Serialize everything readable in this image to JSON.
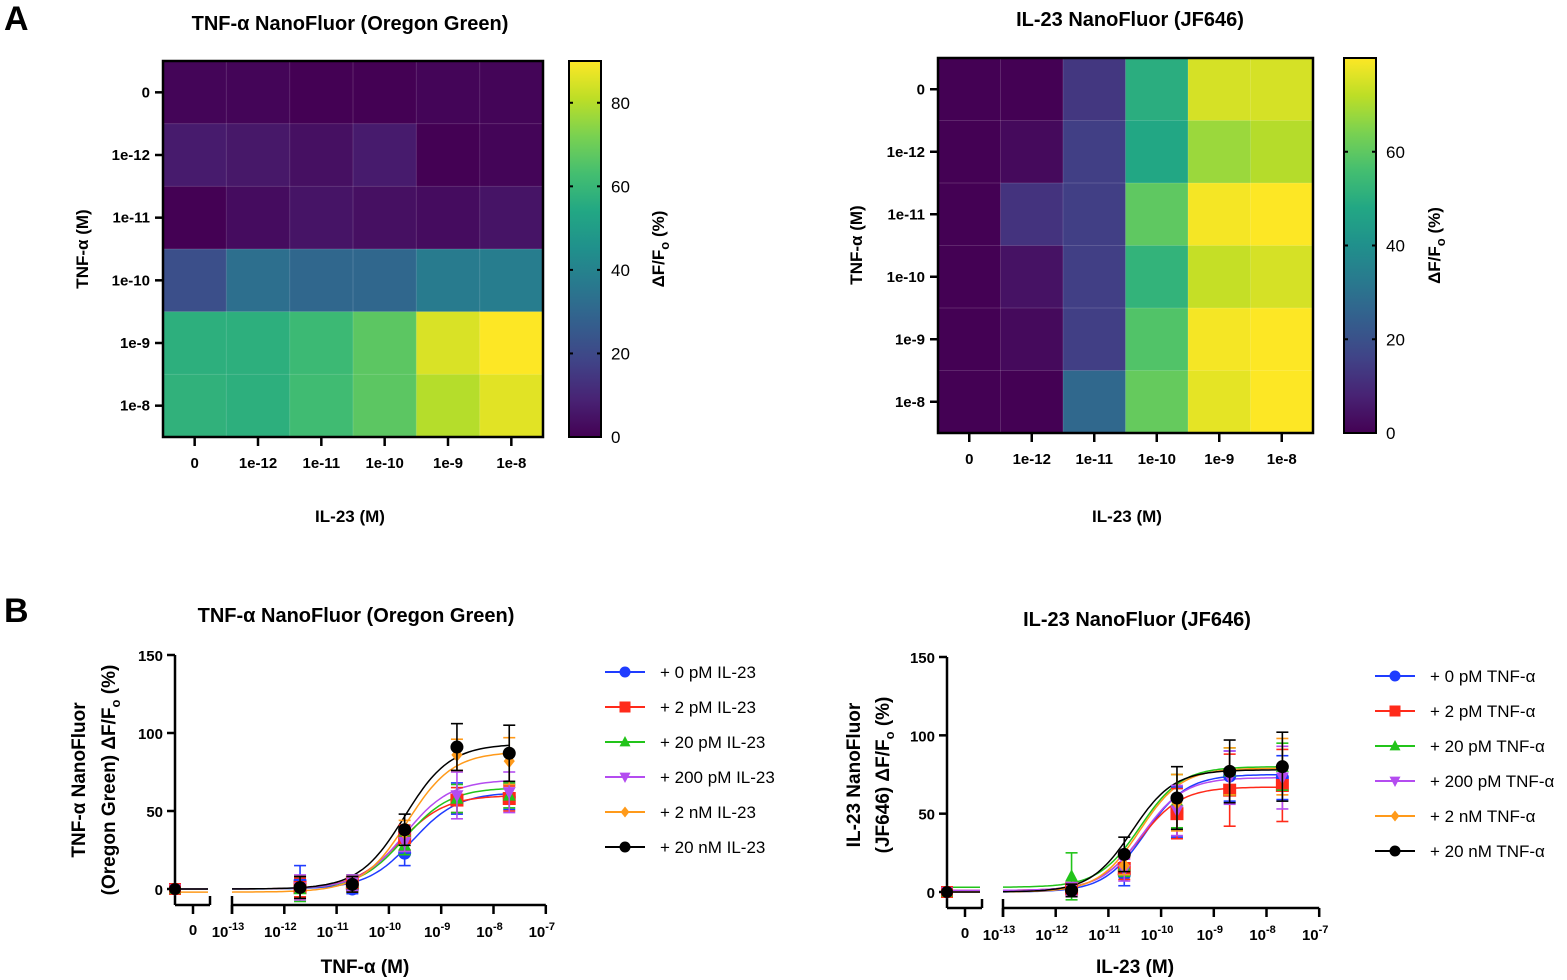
{
  "panels": {
    "a_label": "A",
    "b_label": "B"
  },
  "chart_data": [
    {
      "type": "heatmap",
      "id": "heatmap-tnf",
      "title": "TNF-α NanoFluor (Oregon Green)",
      "xlabel": "IL-23 (M)",
      "ylabel": "TNF-α (M)",
      "x_categories": [
        "0",
        "1e-12",
        "1e-11",
        "1e-10",
        "1e-9",
        "1e-8"
      ],
      "y_categories": [
        "0",
        "1e-12",
        "1e-11",
        "1e-10",
        "1e-9",
        "1e-8"
      ],
      "values": [
        [
          1,
          1,
          0,
          0,
          1,
          1
        ],
        [
          7,
          6,
          4,
          7,
          0,
          1
        ],
        [
          0,
          3,
          5,
          4,
          3,
          5
        ],
        [
          22,
          33,
          30,
          30,
          37,
          38
        ],
        [
          57,
          57,
          61,
          67,
          85,
          90
        ],
        [
          58,
          57,
          62,
          67,
          80,
          86
        ]
      ],
      "colorbar": {
        "label": "ΔF/F",
        "label_sub": "o",
        "label_suffix": " (%)",
        "range": [
          0,
          90
        ],
        "ticks": [
          0,
          20,
          40,
          60,
          80
        ],
        "colormap": "viridis"
      }
    },
    {
      "type": "heatmap",
      "id": "heatmap-il23",
      "title": "IL-23 NanoFluor (JF646)",
      "xlabel": "IL-23 (M)",
      "ylabel": "TNF-α (M)",
      "x_categories": [
        "0",
        "1e-12",
        "1e-11",
        "1e-10",
        "1e-9",
        "1e-8"
      ],
      "y_categories": [
        "0",
        "1e-12",
        "1e-11",
        "1e-10",
        "1e-9",
        "1e-8"
      ],
      "values": [
        [
          0,
          0,
          13,
          50,
          75,
          75
        ],
        [
          0,
          2,
          15,
          48,
          68,
          71
        ],
        [
          0,
          12,
          15,
          60,
          79,
          80
        ],
        [
          0,
          4,
          15,
          52,
          73,
          75
        ],
        [
          0,
          2,
          15,
          58,
          79,
          80
        ],
        [
          0,
          0,
          27,
          61,
          77,
          80
        ]
      ],
      "colorbar": {
        "label": "ΔF/F",
        "label_sub": "o",
        "label_suffix": " (%)",
        "range": [
          0,
          80
        ],
        "ticks": [
          0,
          20,
          40,
          60
        ],
        "colormap": "viridis"
      }
    },
    {
      "type": "scatter",
      "id": "dose-tnf",
      "title": "TNF-α NanoFluor (Oregon Green)",
      "xlabel": "TNF-α (M)",
      "ylabel_line1": "TNF-α NanoFluor",
      "ylabel_line2": "(Oregon Green) ΔF/F",
      "ylabel_sub": "o",
      "ylabel_suffix": " (%)",
      "xscale": "log",
      "xlim_exp": [
        -13,
        -7
      ],
      "x_tick_exps": [
        -13,
        -12,
        -11,
        -10,
        -9,
        -8,
        -7
      ],
      "x_zero_label": "0",
      "ylim": [
        0,
        150
      ],
      "y_ticks": [
        0,
        50,
        100,
        150
      ],
      "x": [
        0,
        2e-12,
        2e-11,
        2e-10,
        2e-09,
        2e-08
      ],
      "legend_position": "right",
      "series": [
        {
          "name": "+ 0 pM IL-23",
          "color": "#1f3cff",
          "marker": "circle",
          "values": [
            0,
            5,
            0,
            23,
            58,
            59
          ],
          "errors": [
            0,
            10,
            3,
            8,
            10,
            8
          ],
          "fit": {
            "bottom": 0,
            "top": 62,
            "logEC50": -9.55,
            "hill": 1
          }
        },
        {
          "name": "+ 2 pM IL-23",
          "color": "#ff2a1a",
          "marker": "square",
          "values": [
            0,
            1,
            4,
            33,
            57,
            58
          ],
          "errors": [
            0,
            6,
            5,
            8,
            8,
            8
          ],
          "fit": {
            "bottom": 0,
            "top": 60,
            "logEC50": -9.8,
            "hill": 1
          }
        },
        {
          "name": "+ 20 pM IL-23",
          "color": "#22c41a",
          "marker": "triangle-up",
          "values": [
            0,
            0,
            4,
            28,
            58,
            60
          ],
          "errors": [
            0,
            8,
            5,
            6,
            9,
            8
          ],
          "fit": {
            "bottom": 0,
            "top": 65,
            "logEC50": -9.7,
            "hill": 1
          }
        },
        {
          "name": "+ 200 pM IL-23",
          "color": "#b44cf0",
          "marker": "triangle-down",
          "values": [
            0,
            1,
            4,
            30,
            60,
            62
          ],
          "errors": [
            0,
            8,
            5,
            6,
            15,
            13
          ],
          "fit": {
            "bottom": 0,
            "top": 70,
            "logEC50": -9.7,
            "hill": 1
          }
        },
        {
          "name": "+ 2 nM IL-23",
          "color": "#ff9a1a",
          "marker": "diamond",
          "values": [
            0,
            1,
            3,
            36,
            86,
            82
          ],
          "errors": [
            0,
            7,
            5,
            8,
            10,
            15
          ],
          "fit": {
            "bottom": -2,
            "top": 88,
            "logEC50": -9.65,
            "hill": 1
          }
        },
        {
          "name": "+ 20 nM IL-23",
          "color": "#000000",
          "marker": "circle",
          "values": [
            0,
            1,
            3,
            38,
            91,
            87
          ],
          "errors": [
            0,
            7,
            5,
            10,
            15,
            18
          ],
          "fit": {
            "bottom": 0,
            "top": 93,
            "logEC50": -9.7,
            "hill": 1
          }
        }
      ]
    },
    {
      "type": "scatter",
      "id": "dose-il23",
      "title": "IL-23 NanoFluor (JF646)",
      "xlabel": "IL-23 (M)",
      "ylabel_line1": "IL-23 NanoFluor",
      "ylabel_line2": "(JF646) ΔF/F",
      "ylabel_sub": "o",
      "ylabel_suffix": " (%)",
      "xscale": "log",
      "xlim_exp": [
        -13,
        -7
      ],
      "x_tick_exps": [
        -13,
        -12,
        -11,
        -10,
        -9,
        -8,
        -7
      ],
      "x_zero_label": "0",
      "ylim": [
        0,
        150
      ],
      "y_ticks": [
        0,
        50,
        100,
        150
      ],
      "x": [
        0,
        2e-12,
        2e-11,
        2e-10,
        2e-09,
        2e-08
      ],
      "legend_position": "right",
      "series": [
        {
          "name": "+ 0 pM TNF-α",
          "color": "#1f3cff",
          "marker": "circle",
          "values": [
            0,
            1,
            11,
            51,
            74,
            73
          ],
          "errors": [
            0,
            4,
            7,
            16,
            16,
            14
          ],
          "fit": {
            "bottom": 0,
            "top": 75,
            "logEC50": -10.3,
            "hill": 1.1
          }
        },
        {
          "name": "+ 2 pM TNF-α",
          "color": "#ff2a1a",
          "marker": "square",
          "values": [
            0,
            2,
            15,
            50,
            65,
            68
          ],
          "errors": [
            0,
            4,
            7,
            16,
            23,
            23
          ],
          "fit": {
            "bottom": 1,
            "top": 67,
            "logEC50": -10.4,
            "hill": 1.1
          }
        },
        {
          "name": "+ 20 pM TNF-α",
          "color": "#22c41a",
          "marker": "triangle-up",
          "values": [
            0,
            10,
            17,
            58,
            77,
            80
          ],
          "errors": [
            0,
            15,
            7,
            17,
            15,
            15
          ],
          "fit": {
            "bottom": 3,
            "top": 80,
            "logEC50": -10.4,
            "hill": 1.1
          }
        },
        {
          "name": "+ 200 pM TNF-α",
          "color": "#b44cf0",
          "marker": "triangle-down",
          "values": [
            0,
            2,
            14,
            52,
            73,
            73
          ],
          "errors": [
            0,
            4,
            7,
            16,
            17,
            20
          ],
          "fit": {
            "bottom": 1,
            "top": 73,
            "logEC50": -10.35,
            "hill": 1.1
          }
        },
        {
          "name": "+ 2 nM TNF-α",
          "color": "#ff9a1a",
          "marker": "diamond",
          "values": [
            0,
            1,
            17,
            57,
            77,
            80
          ],
          "errors": [
            0,
            4,
            6,
            18,
            15,
            18
          ],
          "fit": {
            "bottom": 0,
            "top": 79,
            "logEC50": -10.4,
            "hill": 1.1
          }
        },
        {
          "name": "+ 20 nM TNF-α",
          "color": "#000000",
          "marker": "circle",
          "values": [
            0,
            1,
            24,
            60,
            77,
            80
          ],
          "errors": [
            0,
            4,
            11,
            20,
            20,
            22
          ],
          "fit": {
            "bottom": 0,
            "top": 78,
            "logEC50": -10.55,
            "hill": 1.1
          }
        }
      ]
    }
  ]
}
